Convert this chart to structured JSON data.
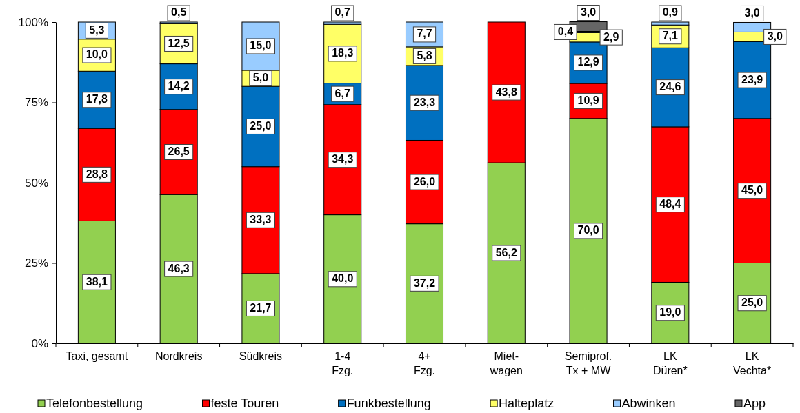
{
  "chart_data": {
    "type": "bar",
    "stacked": true,
    "categories": [
      "Taxi, gesamt",
      "Nordkreis",
      "Südkreis",
      "1-4\nFzg.",
      "4+\nFzg.",
      "Miet-\nwagen",
      "Semiprof.\nTx + MW",
      "LK\nDüren*",
      "LK\nVechta*"
    ],
    "series": [
      {
        "name": "Telefonbestellung",
        "color": "#92d050",
        "values": [
          38.1,
          46.3,
          21.7,
          40.0,
          37.2,
          56.2,
          70.0,
          19.0,
          25.0
        ],
        "value_labels": [
          "38,1",
          "46,3",
          "21,7",
          "40,0",
          "37,2",
          "56,2",
          "70,0",
          "19,0",
          "25,0"
        ]
      },
      {
        "name": "feste Touren",
        "color": "#ff0000",
        "values": [
          28.8,
          26.5,
          33.3,
          34.3,
          26.0,
          43.8,
          10.9,
          48.4,
          45.0
        ],
        "value_labels": [
          "28,8",
          "26,5",
          "33,3",
          "34,3",
          "26,0",
          "43,8",
          "10,9",
          "48,4",
          "45,0"
        ]
      },
      {
        "name": "Funkbestellung",
        "color": "#0070c0",
        "values": [
          17.8,
          14.2,
          25.0,
          6.7,
          23.3,
          null,
          12.9,
          24.6,
          23.9
        ],
        "value_labels": [
          "17,8",
          "14,2",
          "25,0",
          "6,7",
          "23,3",
          null,
          "12,9",
          "24,6",
          "23,9"
        ]
      },
      {
        "name": "Halteplatz",
        "color": "#ffff66",
        "values": [
          10.0,
          12.5,
          5.0,
          18.3,
          5.8,
          null,
          2.9,
          7.1,
          3.0
        ],
        "value_labels": [
          "10,0",
          "12,5",
          "5,0",
          "18,3",
          "5,8",
          null,
          "2,9",
          "7,1",
          "3,0"
        ]
      },
      {
        "name": "Abwinken",
        "color": "#99ccff",
        "values": [
          5.3,
          0.5,
          15.0,
          0.7,
          7.7,
          null,
          0.4,
          0.9,
          3.0
        ],
        "value_labels": [
          "5,3",
          "0,5",
          "15,0",
          "0,7",
          "7,7",
          null,
          "0,4",
          "0,9",
          "3,0"
        ]
      },
      {
        "name": "App",
        "color": "#666666",
        "values": [
          null,
          null,
          null,
          null,
          null,
          null,
          3.0,
          null,
          null
        ],
        "value_labels": [
          null,
          null,
          null,
          null,
          null,
          null,
          "3,0",
          null,
          null
        ]
      }
    ],
    "ylim": [
      0,
      100
    ],
    "yticks": [
      {
        "value": 0,
        "label": "0%"
      },
      {
        "value": 25,
        "label": "25%"
      },
      {
        "value": 50,
        "label": "50%"
      },
      {
        "value": 75,
        "label": "75%"
      },
      {
        "value": 100,
        "label": "100%"
      }
    ],
    "legend": "bottom"
  }
}
